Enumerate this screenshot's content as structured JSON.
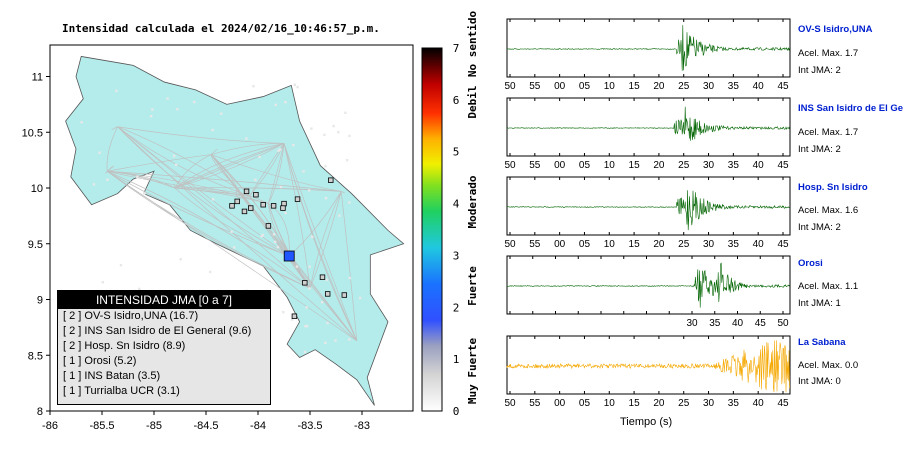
{
  "header": {
    "title": "Intensidad calculada el 2024/02/16_10:46:57_p.m."
  },
  "map": {
    "lon_ticks": [
      "-86",
      "-85.5",
      "-85",
      "-84.5",
      "-84",
      "-83.5",
      "-83"
    ],
    "lat_ticks": [
      "11",
      "10.5",
      "10",
      "9.5",
      "9",
      "8.5",
      "8"
    ],
    "lon_range": [
      -86.0,
      -83.4
    ],
    "lat_range": [
      8.0,
      11.2
    ],
    "land_color": "#b4ecec",
    "highlight_station": {
      "lon": -83.7,
      "lat": 9.39,
      "color": "#1f56ff"
    }
  },
  "colorbar": {
    "ticks": [
      "0",
      "1",
      "2",
      "3",
      "4",
      "5",
      "6",
      "7"
    ],
    "labels": [
      "No sentido",
      "Debil",
      "Moderado",
      "Fuerte",
      "Muy Fuerte"
    ]
  },
  "legend": {
    "title": "INTENSIDAD JMA [0 a 7]",
    "rows": [
      "[ 2 ]  OV-S Isidro,UNA (16.7)",
      "[ 2 ]  INS San Isidro de El General (9.6)",
      "[ 2 ]  Hosp. Sn Isidro (8.9)",
      "[ 1 ]  Orosi (5.2)",
      "[ 1 ]  INS Batan (3.5)",
      "[ 1 ]  Turrialba UCR (3.1)"
    ]
  },
  "chart_data": {
    "type": "line",
    "xlabel": "Tiempo (s)",
    "panels": [
      {
        "name": "OV-S Isidro,UNA",
        "accel": "Acel. Max. 1.7",
        "jma": "Int JMA: 2",
        "x_ticks": [
          "50",
          "55",
          "00",
          "05",
          "10",
          "15",
          "20",
          "25",
          "30",
          "35",
          "40",
          "45"
        ],
        "color": "#006400",
        "onset_s": 26,
        "peak_s": 27,
        "amplitude": 1.0
      },
      {
        "name": "INS San Isidro de El Ge",
        "accel": "Acel. Max. 1.7",
        "jma": "Int JMA: 2",
        "x_ticks": [
          "50",
          "55",
          "00",
          "05",
          "10",
          "15",
          "20",
          "25",
          "30",
          "35",
          "40",
          "45"
        ],
        "color": "#006400",
        "onset_s": 25.5,
        "peak_s": 27.5,
        "amplitude": 0.9
      },
      {
        "name": "Hosp. Sn Isidro",
        "accel": "Acel. Max. 1.6",
        "jma": "Int JMA: 2",
        "x_ticks": [
          "50",
          "55",
          "00",
          "05",
          "10",
          "15",
          "20",
          "25",
          "30",
          "35",
          "40",
          "45"
        ],
        "color": "#006400",
        "onset_s": 26,
        "peak_s": 28,
        "amplitude": 1.0
      },
      {
        "name": "Orosi",
        "accel": "Acel. Max. 1.1",
        "jma": "Int JMA: 1",
        "x_ticks": [
          "",
          "",
          "",
          "",
          "",
          "",
          "",
          "",
          "30",
          "35",
          "40",
          "45",
          "50"
        ],
        "color": "#006400",
        "onset_s": 29.5,
        "peak_s": 30.5,
        "amplitude": 1.0,
        "second_peak_s": 35.5
      },
      {
        "name": "La Sabana",
        "accel": "Acel. Max. 0.0",
        "jma": "Int JMA: 0",
        "x_ticks": [
          "50",
          "55",
          "00",
          "05",
          "10",
          "15",
          "20",
          "25",
          "30",
          "35",
          "40",
          "45"
        ],
        "color": "#f5a800",
        "onset_s": 34,
        "peak_s": 46,
        "amplitude": 1.0
      }
    ]
  }
}
